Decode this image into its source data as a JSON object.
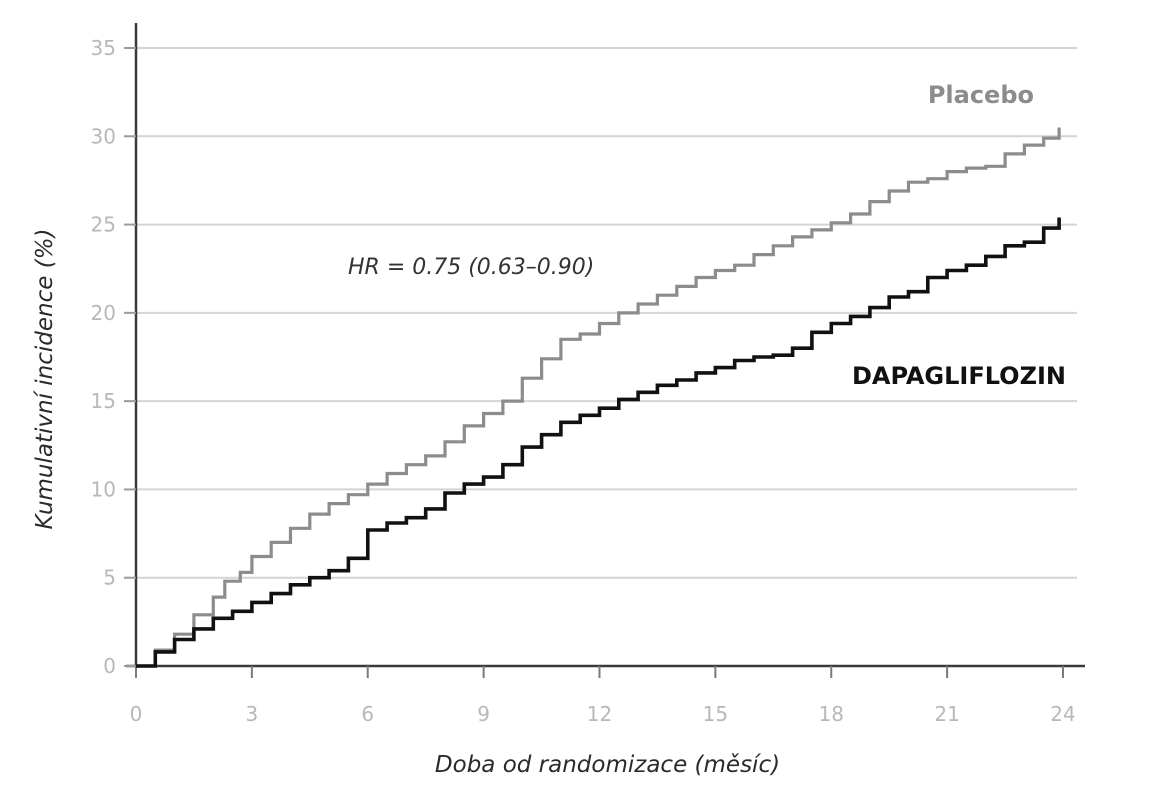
{
  "chart_data": {
    "type": "line",
    "title": "",
    "xlabel": "Doba od randomizace (měsíc)",
    "ylabel": "Kumulativní incidence (%)",
    "xlim": [
      0,
      24
    ],
    "ylim": [
      0,
      35
    ],
    "xticks": [
      0,
      3,
      6,
      9,
      12,
      15,
      18,
      21,
      24
    ],
    "yticks": [
      0,
      5,
      10,
      15,
      20,
      25,
      30,
      35
    ],
    "xtick_labels": [
      "0",
      "3",
      "6",
      "9",
      "12",
      "15",
      "18",
      "21",
      "24"
    ],
    "ytick_labels": [
      "0",
      "5",
      "10",
      "15",
      "20",
      "25",
      "30",
      "35"
    ],
    "grid": "horizontal",
    "annotation": "HR = 0.75 (0.63–0.90)",
    "series": [
      {
        "name": "Placebo",
        "color": "#8c8c8c",
        "x": [
          0,
          0.5,
          1,
          1.5,
          2,
          2.3,
          2.7,
          3,
          3.5,
          4,
          4.5,
          5,
          5.5,
          6,
          6.5,
          7,
          7.5,
          8,
          8.5,
          9,
          9.5,
          10,
          10.5,
          11,
          11.5,
          12,
          12.5,
          13,
          13.5,
          14,
          14.5,
          15,
          15.5,
          16,
          16.5,
          17,
          17.5,
          18,
          18.5,
          19,
          19.5,
          20,
          20.5,
          21,
          21.5,
          22,
          22.5,
          23,
          23.5,
          23.9
        ],
        "values": [
          0,
          0.9,
          1.8,
          2.9,
          3.9,
          4.8,
          5.3,
          6.2,
          7.0,
          7.8,
          8.6,
          9.2,
          9.7,
          10.3,
          10.9,
          11.4,
          11.9,
          12.7,
          13.6,
          14.3,
          15.0,
          16.3,
          17.4,
          18.5,
          18.8,
          19.4,
          20.0,
          20.5,
          21.0,
          21.5,
          22.0,
          22.4,
          22.7,
          23.3,
          23.8,
          24.3,
          24.7,
          25.1,
          25.6,
          26.3,
          26.9,
          27.4,
          27.6,
          28.0,
          28.2,
          28.3,
          29.0,
          29.5,
          29.9,
          30.5
        ]
      },
      {
        "name": "DAPAGLIFLOZIN",
        "color": "#111111",
        "x": [
          0,
          0.5,
          1,
          1.5,
          2,
          2.5,
          3,
          3.5,
          4,
          4.5,
          5,
          5.5,
          6,
          6.5,
          7,
          7.5,
          8,
          8.5,
          9,
          9.5,
          10,
          10.5,
          11,
          11.5,
          12,
          12.5,
          13,
          13.5,
          14,
          14.5,
          15,
          15.5,
          16,
          16.5,
          17,
          17.5,
          18,
          18.5,
          19,
          19.5,
          20,
          20.5,
          21,
          21.5,
          22,
          22.5,
          23,
          23.5,
          23.9
        ],
        "values": [
          0,
          0.8,
          1.5,
          2.1,
          2.7,
          3.1,
          3.6,
          4.1,
          4.6,
          5.0,
          5.4,
          6.1,
          7.7,
          8.1,
          8.4,
          8.9,
          9.8,
          10.3,
          10.7,
          11.4,
          12.4,
          13.1,
          13.8,
          14.2,
          14.6,
          15.1,
          15.5,
          15.9,
          16.2,
          16.6,
          16.9,
          17.3,
          17.5,
          17.6,
          18.0,
          18.9,
          19.4,
          19.8,
          20.3,
          20.9,
          21.2,
          22.0,
          22.4,
          22.7,
          23.2,
          23.8,
          24.0,
          24.8,
          25.4
        ]
      }
    ]
  }
}
